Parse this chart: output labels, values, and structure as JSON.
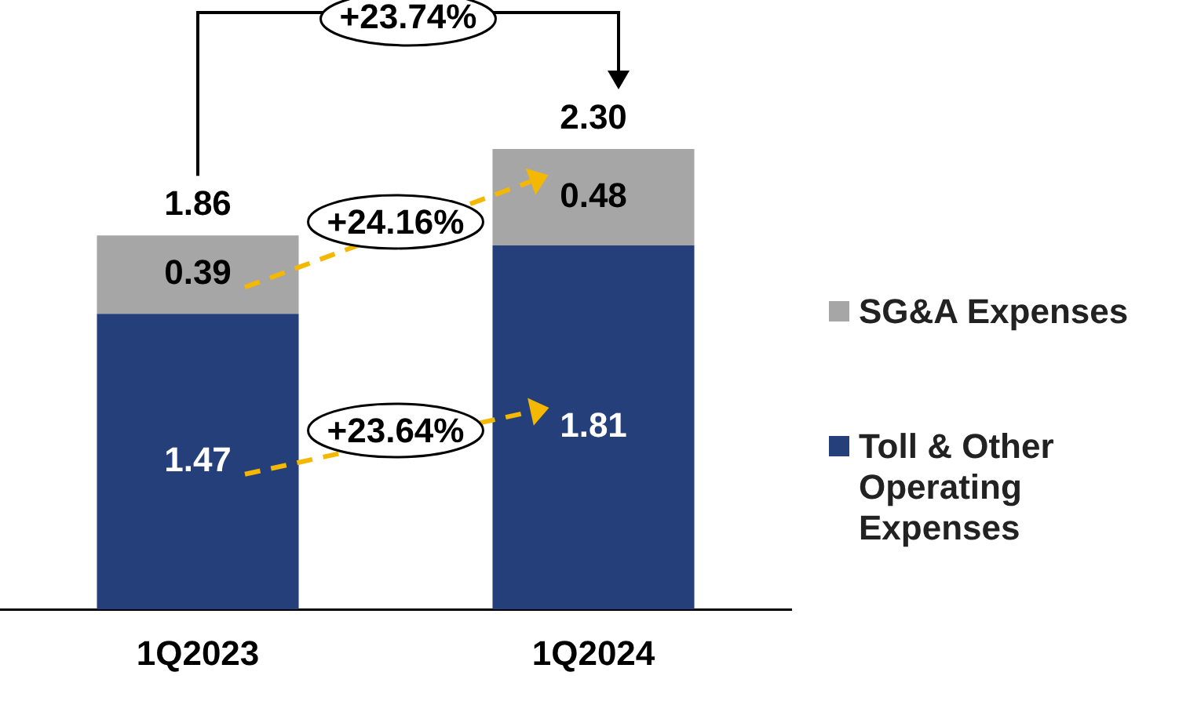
{
  "chart_data": {
    "type": "bar",
    "stacked": true,
    "categories": [
      "1Q2023",
      "1Q2024"
    ],
    "series": [
      {
        "name": "Toll & Other Operating Expenses",
        "color": "#243f7a",
        "values": [
          1.47,
          1.81
        ]
      },
      {
        "name": "SG&A Expenses",
        "color": "#a6a6a6",
        "values": [
          0.39,
          0.48
        ]
      }
    ],
    "data_labels": true,
    "totals": [
      "1.86",
      "2.30"
    ],
    "legend": "right",
    "grid": false,
    "tick_labels": "x",
    "annotations": [
      "+23.74%",
      "+24.16%",
      "+23.64%"
    ]
  }
}
